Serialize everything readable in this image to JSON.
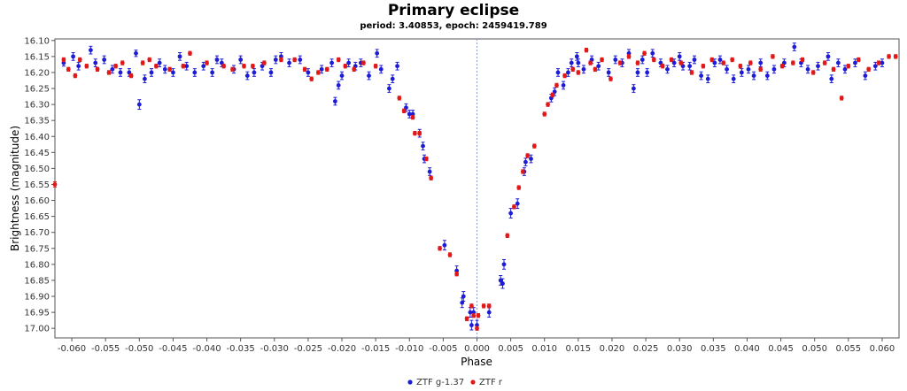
{
  "chart_data": {
    "type": "scatter",
    "title": "Primary eclipse",
    "subtitle": "period: 3.40853, epoch: 2459419.789",
    "xlabel": "Phase",
    "ylabel": "Brightness (magnitude)",
    "xlim": [
      -0.0625,
      0.0625
    ],
    "ylim": [
      17.03,
      16.095
    ],
    "y_inverted": true,
    "grid": false,
    "legend_position": "bottom-center",
    "x_ticks": [
      "-0.060",
      "-0.055",
      "-0.050",
      "-0.045",
      "-0.040",
      "-0.035",
      "-0.030",
      "-0.025",
      "-0.020",
      "-0.015",
      "-0.010",
      "-0.005",
      "0.000",
      "0.005",
      "0.010",
      "0.015",
      "0.020",
      "0.025",
      "0.030",
      "0.035",
      "0.040",
      "0.045",
      "0.050",
      "0.055",
      "0.060"
    ],
    "y_ticks": [
      "16.10",
      "16.15",
      "16.20",
      "16.25",
      "16.30",
      "16.35",
      "16.40",
      "16.45",
      "16.50",
      "16.55",
      "16.60",
      "16.65",
      "16.70",
      "16.75",
      "16.80",
      "16.85",
      "16.90",
      "16.95",
      "17.00"
    ],
    "vline": 0.0,
    "series": [
      {
        "name": "ZTF g-1.37",
        "color": "#1c1cd6",
        "points": [
          [
            -0.0612,
            16.17,
            0.01
          ],
          [
            -0.0598,
            16.15,
            0.012
          ],
          [
            -0.059,
            16.18,
            0.012
          ],
          [
            -0.0572,
            16.13,
            0.012
          ],
          [
            -0.0565,
            16.17,
            0.012
          ],
          [
            -0.0552,
            16.16,
            0.012
          ],
          [
            -0.054,
            16.19,
            0.012
          ],
          [
            -0.0528,
            16.2,
            0.012
          ],
          [
            -0.0515,
            16.2,
            0.012
          ],
          [
            -0.0505,
            16.14,
            0.01
          ],
          [
            -0.05,
            16.3,
            0.015
          ],
          [
            -0.0492,
            16.22,
            0.012
          ],
          [
            -0.0482,
            16.2,
            0.012
          ],
          [
            -0.047,
            16.17,
            0.012
          ],
          [
            -0.0462,
            16.19,
            0.012
          ],
          [
            -0.045,
            16.2,
            0.012
          ],
          [
            -0.044,
            16.15,
            0.012
          ],
          [
            -0.043,
            16.18,
            0.012
          ],
          [
            -0.0418,
            16.2,
            0.012
          ],
          [
            -0.0405,
            16.18,
            0.012
          ],
          [
            -0.0392,
            16.2,
            0.012
          ],
          [
            -0.0385,
            16.16,
            0.012
          ],
          [
            -0.0378,
            16.17,
            0.012
          ],
          [
            -0.036,
            16.19,
            0.012
          ],
          [
            -0.035,
            16.16,
            0.012
          ],
          [
            -0.034,
            16.21,
            0.012
          ],
          [
            -0.033,
            16.2,
            0.012
          ],
          [
            -0.0318,
            16.18,
            0.012
          ],
          [
            -0.0305,
            16.2,
            0.012
          ],
          [
            -0.0298,
            16.16,
            0.012
          ],
          [
            -0.029,
            16.15,
            0.012
          ],
          [
            -0.0278,
            16.17,
            0.012
          ],
          [
            -0.0262,
            16.16,
            0.012
          ],
          [
            -0.025,
            16.2,
            0.012
          ],
          [
            -0.023,
            16.19,
            0.012
          ],
          [
            -0.0215,
            16.17,
            0.012
          ],
          [
            -0.021,
            16.29,
            0.012
          ],
          [
            -0.0205,
            16.24,
            0.012
          ],
          [
            -0.02,
            16.21,
            0.012
          ],
          [
            -0.019,
            16.17,
            0.012
          ],
          [
            -0.018,
            16.18,
            0.012
          ],
          [
            -0.0172,
            16.17,
            0.012
          ],
          [
            -0.016,
            16.21,
            0.012
          ],
          [
            -0.0148,
            16.14,
            0.012
          ],
          [
            -0.0142,
            16.19,
            0.012
          ],
          [
            -0.013,
            16.25,
            0.012
          ],
          [
            -0.0125,
            16.22,
            0.012
          ],
          [
            -0.0118,
            16.18,
            0.012
          ],
          [
            -0.0105,
            16.31,
            0.012
          ],
          [
            -0.01,
            16.33,
            0.012
          ],
          [
            -0.0095,
            16.33,
            0.012
          ],
          [
            -0.0085,
            16.39,
            0.012
          ],
          [
            -0.008,
            16.43,
            0.012
          ],
          [
            -0.0078,
            16.47,
            0.012
          ],
          [
            -0.007,
            16.51,
            0.012
          ],
          [
            -0.0048,
            16.74,
            0.015
          ],
          [
            -0.003,
            16.82,
            0.015
          ],
          [
            -0.0022,
            16.92,
            0.015
          ],
          [
            -0.002,
            16.9,
            0.015
          ],
          [
            -0.001,
            16.95,
            0.015
          ],
          [
            -0.0008,
            16.99,
            0.015
          ],
          [
            -0.0005,
            16.95,
            0.015
          ],
          [
            0.0,
            16.99,
            0.015
          ],
          [
            0.0018,
            16.95,
            0.015
          ],
          [
            0.0035,
            16.85,
            0.015
          ],
          [
            0.004,
            16.8,
            0.015
          ],
          [
            0.0038,
            16.86,
            0.015
          ],
          [
            0.005,
            16.64,
            0.015
          ],
          [
            0.006,
            16.61,
            0.015
          ],
          [
            0.007,
            16.51,
            0.012
          ],
          [
            0.0072,
            16.48,
            0.012
          ],
          [
            0.008,
            16.47,
            0.012
          ],
          [
            0.011,
            16.28,
            0.012
          ],
          [
            0.0115,
            16.26,
            0.012
          ],
          [
            0.012,
            16.2,
            0.012
          ],
          [
            0.0128,
            16.24,
            0.012
          ],
          [
            0.0135,
            16.2,
            0.012
          ],
          [
            0.014,
            16.17,
            0.012
          ],
          [
            0.0148,
            16.15,
            0.012
          ],
          [
            0.015,
            16.17,
            0.012
          ],
          [
            0.0158,
            16.19,
            0.012
          ],
          [
            0.017,
            16.16,
            0.012
          ],
          [
            0.018,
            16.18,
            0.012
          ],
          [
            0.0195,
            16.2,
            0.012
          ],
          [
            0.0205,
            16.16,
            0.012
          ],
          [
            0.0215,
            16.17,
            0.012
          ],
          [
            0.0225,
            16.14,
            0.012
          ],
          [
            0.0232,
            16.25,
            0.012
          ],
          [
            0.0238,
            16.2,
            0.012
          ],
          [
            0.0245,
            16.16,
            0.012
          ],
          [
            0.0252,
            16.2,
            0.012
          ],
          [
            0.026,
            16.14,
            0.012
          ],
          [
            0.0272,
            16.17,
            0.012
          ],
          [
            0.0282,
            16.19,
            0.012
          ],
          [
            0.0292,
            16.17,
            0.012
          ],
          [
            0.03,
            16.15,
            0.012
          ],
          [
            0.0305,
            16.18,
            0.012
          ],
          [
            0.0315,
            16.18,
            0.012
          ],
          [
            0.0322,
            16.16,
            0.012
          ],
          [
            0.0332,
            16.21,
            0.012
          ],
          [
            0.0342,
            16.22,
            0.012
          ],
          [
            0.0352,
            16.17,
            0.012
          ],
          [
            0.036,
            16.16,
            0.012
          ],
          [
            0.037,
            16.19,
            0.012
          ],
          [
            0.038,
            16.22,
            0.012
          ],
          [
            0.0392,
            16.2,
            0.012
          ],
          [
            0.0402,
            16.19,
            0.012
          ],
          [
            0.041,
            16.21,
            0.012
          ],
          [
            0.042,
            16.17,
            0.012
          ],
          [
            0.043,
            16.21,
            0.012
          ],
          [
            0.044,
            16.19,
            0.012
          ],
          [
            0.0455,
            16.17,
            0.012
          ],
          [
            0.047,
            16.12,
            0.012
          ],
          [
            0.048,
            16.17,
            0.012
          ],
          [
            0.049,
            16.19,
            0.012
          ],
          [
            0.0505,
            16.18,
            0.012
          ],
          [
            0.052,
            16.15,
            0.012
          ],
          [
            0.0525,
            16.22,
            0.012
          ],
          [
            0.0535,
            16.17,
            0.012
          ],
          [
            0.0545,
            16.19,
            0.012
          ],
          [
            0.056,
            16.17,
            0.012
          ],
          [
            0.0575,
            16.21,
            0.012
          ],
          [
            0.059,
            16.18,
            0.012
          ],
          [
            0.06,
            16.17,
            0.012
          ]
        ]
      },
      {
        "name": "ZTF r",
        "color": "#e01818",
        "points": [
          [
            -0.0625,
            16.55,
            0.008
          ],
          [
            -0.0612,
            16.16,
            0.006
          ],
          [
            -0.0605,
            16.19,
            0.006
          ],
          [
            -0.0595,
            16.21,
            0.006
          ],
          [
            -0.0588,
            16.16,
            0.006
          ],
          [
            -0.0578,
            16.18,
            0.006
          ],
          [
            -0.0562,
            16.19,
            0.006
          ],
          [
            -0.0545,
            16.2,
            0.006
          ],
          [
            -0.0535,
            16.18,
            0.006
          ],
          [
            -0.0525,
            16.17,
            0.006
          ],
          [
            -0.0512,
            16.21,
            0.006
          ],
          [
            -0.0495,
            16.17,
            0.006
          ],
          [
            -0.0485,
            16.16,
            0.006
          ],
          [
            -0.0475,
            16.18,
            0.006
          ],
          [
            -0.0455,
            16.19,
            0.006
          ],
          [
            -0.0435,
            16.18,
            0.006
          ],
          [
            -0.0425,
            16.14,
            0.006
          ],
          [
            -0.04,
            16.17,
            0.006
          ],
          [
            -0.0375,
            16.18,
            0.006
          ],
          [
            -0.0362,
            16.19,
            0.006
          ],
          [
            -0.0345,
            16.18,
            0.006
          ],
          [
            -0.0332,
            16.18,
            0.006
          ],
          [
            -0.0315,
            16.17,
            0.006
          ],
          [
            -0.029,
            16.16,
            0.006
          ],
          [
            -0.027,
            16.16,
            0.006
          ],
          [
            -0.0255,
            16.19,
            0.006
          ],
          [
            -0.0245,
            16.22,
            0.006
          ],
          [
            -0.0235,
            16.2,
            0.006
          ],
          [
            -0.0222,
            16.19,
            0.006
          ],
          [
            -0.0205,
            16.16,
            0.006
          ],
          [
            -0.0195,
            16.18,
            0.006
          ],
          [
            -0.0182,
            16.19,
            0.006
          ],
          [
            -0.0168,
            16.17,
            0.006
          ],
          [
            -0.015,
            16.18,
            0.006
          ],
          [
            -0.0115,
            16.28,
            0.006
          ],
          [
            -0.0108,
            16.32,
            0.006
          ],
          [
            -0.0095,
            16.34,
            0.006
          ],
          [
            -0.0092,
            16.39,
            0.006
          ],
          [
            -0.0085,
            16.39,
            0.006
          ],
          [
            -0.0075,
            16.47,
            0.006
          ],
          [
            -0.0068,
            16.53,
            0.006
          ],
          [
            -0.0055,
            16.75,
            0.006
          ],
          [
            -0.004,
            16.77,
            0.006
          ],
          [
            -0.003,
            16.83,
            0.006
          ],
          [
            -0.0015,
            16.97,
            0.006
          ],
          [
            -0.0008,
            16.93,
            0.006
          ],
          [
            -0.0005,
            16.96,
            0.006
          ],
          [
            0.0,
            17.0,
            0.006
          ],
          [
            0.0002,
            16.96,
            0.006
          ],
          [
            0.001,
            16.93,
            0.006
          ],
          [
            0.0018,
            16.93,
            0.006
          ],
          [
            0.0045,
            16.71,
            0.006
          ],
          [
            0.0055,
            16.62,
            0.006
          ],
          [
            0.0062,
            16.56,
            0.006
          ],
          [
            0.0068,
            16.51,
            0.006
          ],
          [
            0.0075,
            16.46,
            0.006
          ],
          [
            0.0085,
            16.43,
            0.006
          ],
          [
            0.01,
            16.33,
            0.006
          ],
          [
            0.0105,
            16.3,
            0.006
          ],
          [
            0.0112,
            16.27,
            0.006
          ],
          [
            0.0118,
            16.24,
            0.006
          ],
          [
            0.013,
            16.21,
            0.006
          ],
          [
            0.0142,
            16.19,
            0.006
          ],
          [
            0.015,
            16.2,
            0.006
          ],
          [
            0.0162,
            16.13,
            0.006
          ],
          [
            0.0168,
            16.17,
            0.006
          ],
          [
            0.0175,
            16.19,
            0.006
          ],
          [
            0.0185,
            16.16,
            0.006
          ],
          [
            0.0198,
            16.22,
            0.006
          ],
          [
            0.0212,
            16.17,
            0.006
          ],
          [
            0.0225,
            16.15,
            0.006
          ],
          [
            0.0238,
            16.17,
            0.006
          ],
          [
            0.0248,
            16.14,
            0.006
          ],
          [
            0.0262,
            16.16,
            0.006
          ],
          [
            0.0275,
            16.18,
            0.006
          ],
          [
            0.0288,
            16.16,
            0.006
          ],
          [
            0.0302,
            16.17,
            0.006
          ],
          [
            0.0318,
            16.2,
            0.006
          ],
          [
            0.0335,
            16.18,
            0.006
          ],
          [
            0.0348,
            16.16,
            0.006
          ],
          [
            0.0365,
            16.17,
            0.006
          ],
          [
            0.0378,
            16.16,
            0.006
          ],
          [
            0.039,
            16.18,
            0.006
          ],
          [
            0.0405,
            16.17,
            0.006
          ],
          [
            0.042,
            16.19,
            0.006
          ],
          [
            0.0438,
            16.15,
            0.006
          ],
          [
            0.0452,
            16.18,
            0.006
          ],
          [
            0.0468,
            16.17,
            0.006
          ],
          [
            0.0482,
            16.16,
            0.006
          ],
          [
            0.0498,
            16.2,
            0.006
          ],
          [
            0.0515,
            16.17,
            0.006
          ],
          [
            0.0528,
            16.19,
            0.006
          ],
          [
            0.054,
            16.28,
            0.006
          ],
          [
            0.055,
            16.18,
            0.006
          ],
          [
            0.0565,
            16.16,
            0.006
          ],
          [
            0.058,
            16.19,
            0.006
          ],
          [
            0.0595,
            16.17,
            0.006
          ],
          [
            0.061,
            16.15,
            0.006
          ],
          [
            0.062,
            16.15,
            0.006
          ]
        ]
      }
    ]
  }
}
